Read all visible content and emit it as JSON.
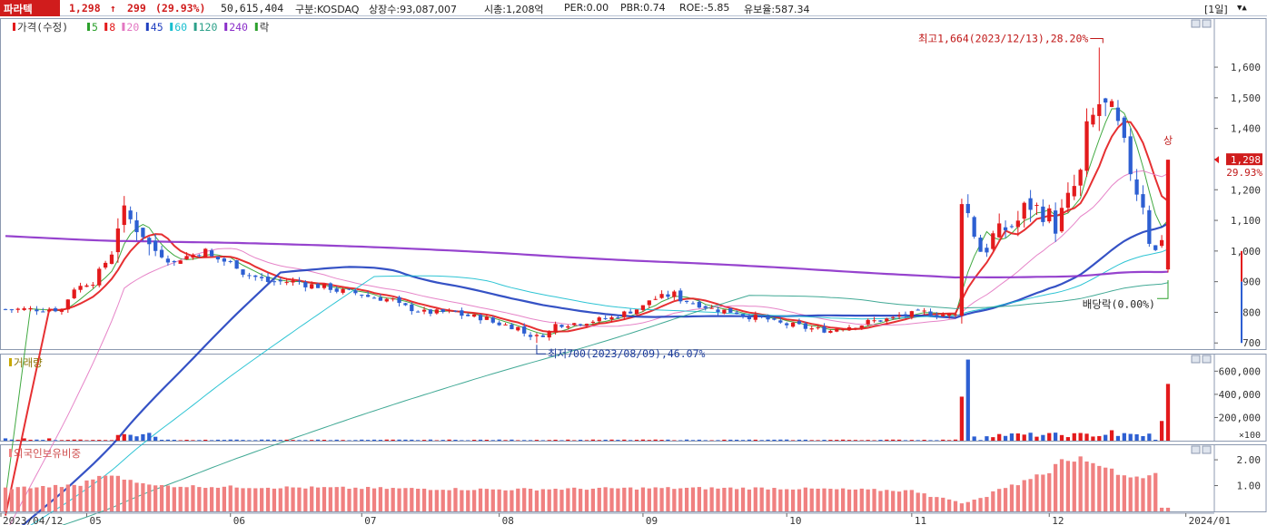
{
  "header": {
    "stock_name": "파라텍",
    "price": "1,298",
    "arrow": "↑",
    "change": "299",
    "change_pct": "(29.93%)",
    "volume": "50,615,404",
    "market": "구분:KOSDAQ",
    "shares": "상장수:93,087,007",
    "market_cap": "시총:1,208억",
    "per": "PER:0.00",
    "pbr": "PBR:0.74",
    "roe": "ROE:-5.85",
    "float_ratio": "유보율:587.34",
    "period": "[1일]",
    "period_arrows": "▼▲"
  },
  "legend": {
    "price_label": "가격(수정)",
    "ma": [
      {
        "label": "5",
        "color": "#2ca02c"
      },
      {
        "label": "8",
        "color": "#e31a1c"
      },
      {
        "label": "20",
        "color": "#e377c2"
      },
      {
        "label": "45",
        "color": "#1f3fbf"
      },
      {
        "label": "60",
        "color": "#17becf"
      },
      {
        "label": "120",
        "color": "#2ca089"
      },
      {
        "label": "240",
        "color": "#8b2fc9"
      }
    ],
    "drop_label": "락",
    "volume_label": "거래량",
    "foreign_label": "외국인보유비중"
  },
  "annotations": {
    "high": "최고1,664(2023/12/13),28.20%",
    "low": "최저700(2023/08/09),46.07%",
    "dividend": "배당락(0.00%)",
    "limit_up": "상",
    "last_price": "1,298",
    "last_pct": "29.93%"
  },
  "colors": {
    "up": "#e31a1c",
    "down": "#2d5fd2",
    "foreign": "#f08080"
  },
  "chart_data": {
    "type": "candlestick",
    "price_axis": {
      "ticks": [
        700,
        800,
        900,
        1000,
        1100,
        1200,
        1300,
        1400,
        1500,
        1600
      ],
      "ylim": [
        680,
        1760
      ]
    },
    "volume_axis": {
      "ticks": [
        "600,000",
        "400,000",
        "200,000"
      ],
      "unit": "×100",
      "ylim": [
        0,
        720000
      ]
    },
    "foreign_axis": {
      "ticks": [
        "2.00",
        "1.00"
      ],
      "ylim": [
        0,
        2.6
      ]
    },
    "x_labels": [
      "2023/04/12",
      "05",
      "06",
      "07",
      "08",
      "09",
      "10",
      "11",
      "12",
      "2024/01"
    ],
    "x_label_dates": [
      "2023-04-12",
      "2023-05-01",
      "2023-06-01",
      "2023-07-01",
      "2023-08-01",
      "2023-09-01",
      "2023-10-04",
      "2023-11-01",
      "2023-12-01",
      "2024-01-01"
    ],
    "anchors": [
      [
        "2023-04-12",
        810
      ],
      [
        "2023-04-25",
        810
      ],
      [
        "2023-04-27",
        880
      ],
      [
        "2023-05-02",
        900
      ],
      [
        "2023-05-09",
        1120
      ],
      [
        "2023-05-12",
        1060
      ],
      [
        "2023-05-19",
        960
      ],
      [
        "2023-05-26",
        1000
      ],
      [
        "2023-06-01",
        960
      ],
      [
        "2023-06-09",
        900
      ],
      [
        "2023-06-16",
        900
      ],
      [
        "2023-06-23",
        880
      ],
      [
        "2023-06-30",
        860
      ],
      [
        "2023-07-07",
        840
      ],
      [
        "2023-07-14",
        800
      ],
      [
        "2023-07-21",
        800
      ],
      [
        "2023-07-28",
        780
      ],
      [
        "2023-08-04",
        750
      ],
      [
        "2023-08-09",
        720
      ],
      [
        "2023-08-14",
        760
      ],
      [
        "2023-08-21",
        770
      ],
      [
        "2023-08-28",
        790
      ],
      [
        "2023-09-04",
        840
      ],
      [
        "2023-09-08",
        860
      ],
      [
        "2023-09-15",
        820
      ],
      [
        "2023-09-22",
        800
      ],
      [
        "2023-10-04",
        760
      ],
      [
        "2023-10-13",
        740
      ],
      [
        "2023-10-20",
        760
      ],
      [
        "2023-10-27",
        780
      ],
      [
        "2023-11-03",
        800
      ],
      [
        "2023-11-10",
        790
      ],
      [
        "2023-11-13",
        1180
      ],
      [
        "2023-11-16",
        1000
      ],
      [
        "2023-11-21",
        1060
      ],
      [
        "2023-11-28",
        1150
      ],
      [
        "2023-12-04",
        1080
      ],
      [
        "2023-12-08",
        1250
      ],
      [
        "2023-12-13",
        1480
      ],
      [
        "2023-12-18",
        1400
      ],
      [
        "2023-12-21",
        1200
      ],
      [
        "2023-12-26",
        1000
      ],
      [
        "2023-12-27",
        1050
      ],
      [
        "2023-12-28",
        1298
      ]
    ],
    "volume_spikes": [
      [
        "2023-11-13",
        380000
      ],
      [
        "2023-11-14",
        700000
      ],
      [
        "2023-12-15",
        90000
      ],
      [
        "2023-12-28",
        490000
      ],
      [
        "2023-12-27",
        170000
      ]
    ],
    "foreign_anchors": [
      [
        "2023-04-12",
        0.9
      ],
      [
        "2023-04-28",
        1.0
      ],
      [
        "2023-05-05",
        1.45
      ],
      [
        "2023-05-15",
        1.0
      ],
      [
        "2023-06-01",
        0.95
      ],
      [
        "2023-07-01",
        0.9
      ],
      [
        "2023-08-01",
        0.85
      ],
      [
        "2023-09-01",
        0.9
      ],
      [
        "2023-10-01",
        0.9
      ],
      [
        "2023-11-01",
        0.8
      ],
      [
        "2023-11-13",
        0.3
      ],
      [
        "2023-11-20",
        0.8
      ],
      [
        "2023-12-01",
        1.5
      ],
      [
        "2023-12-05",
        2.1
      ],
      [
        "2023-12-12",
        1.9
      ],
      [
        "2023-12-20",
        1.3
      ],
      [
        "2023-12-26",
        1.45
      ],
      [
        "2023-12-27",
        0.15
      ],
      [
        "2023-12-28",
        0.15
      ]
    ],
    "ma_periods": [
      5,
      8,
      20,
      45,
      60,
      120,
      240
    ],
    "high_point": {
      "date": "2023-12-13",
      "value": 1664
    },
    "low_point": {
      "date": "2023-08-09",
      "value": 700
    }
  }
}
